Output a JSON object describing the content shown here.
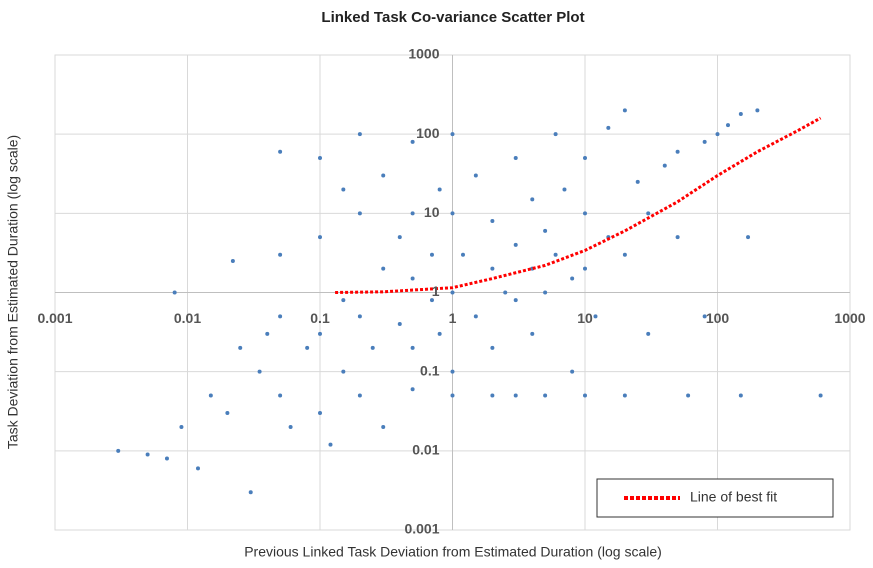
{
  "chart_data": {
    "type": "scatter",
    "title": "Linked Task Co-variance Scatter Plot",
    "xlabel": "Previous Linked Task Deviation from Estimated Duration (log scale)",
    "ylabel": "Task Deviation from Estimated Duration (log scale)",
    "xscale": "log",
    "yscale": "log",
    "xlim": [
      0.001,
      1000
    ],
    "ylim": [
      0.001,
      1000
    ],
    "xticks": [
      0.001,
      0.01,
      0.1,
      1,
      10,
      100,
      1000
    ],
    "yticks": [
      0.001,
      0.01,
      0.1,
      1,
      10,
      100,
      1000
    ],
    "grid": true,
    "legend": "lower right",
    "series": [
      {
        "type": "scatter",
        "color": "#4a7ebb",
        "x": [
          0.003,
          0.005,
          0.007,
          0.008,
          0.009,
          0.012,
          0.015,
          0.02,
          0.022,
          0.025,
          0.03,
          0.035,
          0.04,
          0.05,
          0.05,
          0.05,
          0.05,
          0.06,
          0.08,
          0.1,
          0.1,
          0.1,
          0.1,
          0.12,
          0.15,
          0.15,
          0.15,
          0.2,
          0.2,
          0.2,
          0.2,
          0.25,
          0.3,
          0.3,
          0.3,
          0.4,
          0.4,
          0.5,
          0.5,
          0.5,
          0.5,
          0.5,
          0.7,
          0.7,
          0.8,
          0.8,
          1,
          1,
          1,
          1,
          1,
          1.2,
          1.5,
          1.5,
          2,
          2,
          2,
          2,
          2.5,
          3,
          3,
          3,
          3,
          4,
          4,
          4,
          5,
          5,
          5,
          6,
          6,
          7,
          8,
          8,
          10,
          10,
          10,
          10,
          12,
          15,
          15,
          20,
          20,
          20,
          25,
          30,
          30,
          40,
          50,
          50,
          60,
          80,
          80,
          100,
          120,
          150,
          170,
          200,
          150,
          600
        ],
        "values": [
          0.01,
          0.009,
          0.008,
          1.0,
          0.02,
          0.006,
          0.05,
          0.03,
          2.5,
          0.2,
          0.003,
          0.1,
          0.3,
          60,
          3,
          0.5,
          0.05,
          0.02,
          0.2,
          50,
          5,
          0.3,
          0.03,
          0.012,
          20,
          0.8,
          0.1,
          100,
          10,
          0.5,
          0.05,
          0.2,
          30,
          2,
          0.02,
          0.4,
          5,
          80,
          10,
          1.5,
          0.2,
          0.06,
          3,
          0.8,
          20,
          0.3,
          100,
          10,
          1,
          0.1,
          0.05,
          3,
          0.5,
          30,
          2,
          8,
          0.05,
          0.2,
          1,
          50,
          4,
          0.8,
          0.05,
          15,
          2,
          0.3,
          1,
          6,
          0.05,
          100,
          3,
          20,
          0.1,
          1.5,
          10,
          50,
          2,
          0.05,
          0.5,
          5,
          120,
          200,
          3,
          0.05,
          25,
          10,
          0.3,
          40,
          60,
          5,
          0.05,
          80,
          0.5,
          100,
          130,
          180,
          5,
          200,
          0.05,
          0.05
        ]
      },
      {
        "type": "line",
        "name": "Line of best fit",
        "color": "#ff0000",
        "x": [
          0.13,
          0.3,
          1,
          2,
          5,
          10,
          20,
          50,
          100,
          200,
          400,
          600
        ],
        "values": [
          1.0,
          1.02,
          1.15,
          1.5,
          2.2,
          3.4,
          6,
          14,
          30,
          60,
          110,
          160
        ]
      }
    ]
  }
}
